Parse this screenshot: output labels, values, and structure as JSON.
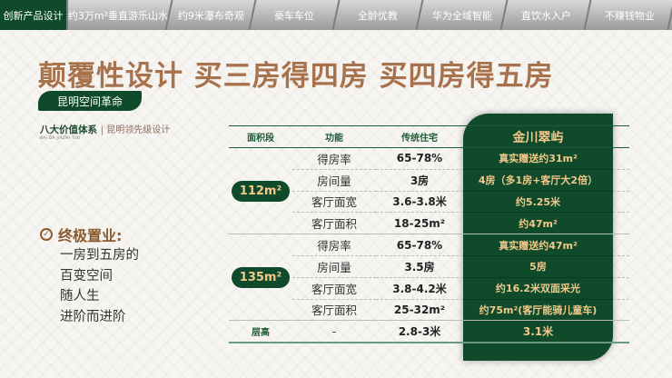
{
  "nav": {
    "items": [
      "创新产品设计",
      "约3万m²垂直游乐山水",
      "约9米瀑布奇观",
      "豪车车位",
      "全龄优教",
      "华为全域智能",
      "直饮水入户",
      "不赚钱物业"
    ],
    "active": 0
  },
  "headline": "颠覆性设计  买三房得四房  买四房得五房",
  "pill": "昆明空间革命",
  "system": {
    "title": "八大价值体系",
    "sub": "昆明领先级设计",
    "en": "BAI DA JIAZHI TIXI"
  },
  "slogan": {
    "title": "终极置业:",
    "lines": [
      "一房到五房的",
      "百变空间",
      "随人生",
      "进阶而进阶"
    ]
  },
  "table": {
    "headers": [
      "面积段",
      "功能",
      "传统住宅",
      "金川翠屿"
    ],
    "groups": [
      {
        "area": "112m²",
        "rows": [
          [
            "得房率",
            "65-78%",
            "真实赠送约31m²"
          ],
          [
            "房间量",
            "3房",
            "4房（多1房+客厅大2倍）"
          ],
          [
            "客厅面宽",
            "3.6-3.8米",
            "约5.25米"
          ],
          [
            "客厅面积",
            "18-25m²",
            "约47m²"
          ]
        ]
      },
      {
        "area": "135m²",
        "rows": [
          [
            "得房率",
            "65-78%",
            "真实赠送约47m²"
          ],
          [
            "房间量",
            "3.5房",
            "5房"
          ],
          [
            "客厅面宽",
            "3.8-4.2米",
            "约16.2米双面采光"
          ],
          [
            "客厅面积",
            "25-32m²",
            "约75m²(客厅能骑儿童车)"
          ]
        ]
      }
    ],
    "floor": {
      "label": "层高",
      "func": "-",
      "traditional": "2.8-3米",
      "ours": "3.1米"
    }
  },
  "colors": {
    "green": "#0f4a2a",
    "gold": "#f2c98a",
    "brown": "#a8724c"
  }
}
